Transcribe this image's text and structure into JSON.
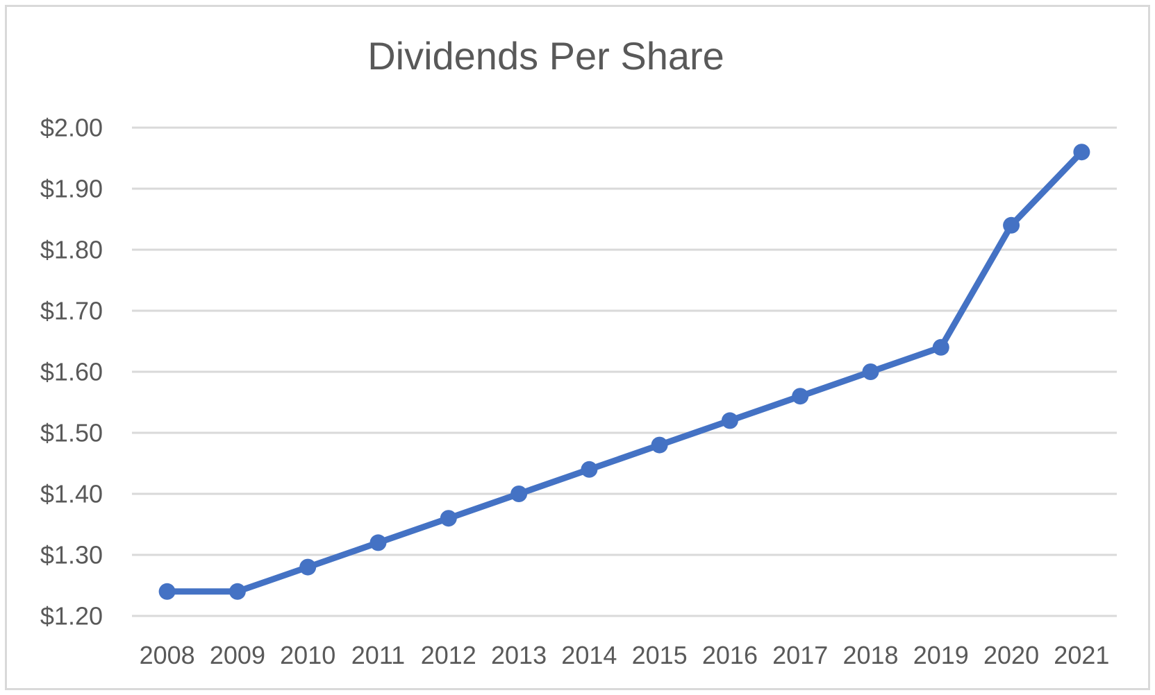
{
  "chart": {
    "colors": {
      "line": "#4472C4",
      "marker": "#4472C4",
      "gridline": "#D9D9D9",
      "border": "#D9D9D9",
      "text": "#595959",
      "background": "#FFFFFF"
    }
  },
  "chart_data": {
    "type": "line",
    "title": "Dividends Per Share",
    "categories": [
      "2008",
      "2009",
      "2010",
      "2011",
      "2012",
      "2013",
      "2014",
      "2015",
      "2016",
      "2017",
      "2018",
      "2019",
      "2020",
      "2021"
    ],
    "series": [
      {
        "name": "Dividends Per Share",
        "values": [
          1.24,
          1.24,
          1.28,
          1.32,
          1.36,
          1.4,
          1.44,
          1.48,
          1.52,
          1.56,
          1.6,
          1.64,
          1.84,
          1.96
        ]
      }
    ],
    "xlabel": "",
    "ylabel": "",
    "ylim": [
      1.2,
      2.0
    ],
    "ytick_step": 0.1,
    "ytick_labels": [
      "$2.00",
      "$1.90",
      "$1.80",
      "$1.70",
      "$1.60",
      "$1.50",
      "$1.40",
      "$1.30",
      "$1.20"
    ],
    "grid": true,
    "legend": false,
    "marker": "circle"
  }
}
